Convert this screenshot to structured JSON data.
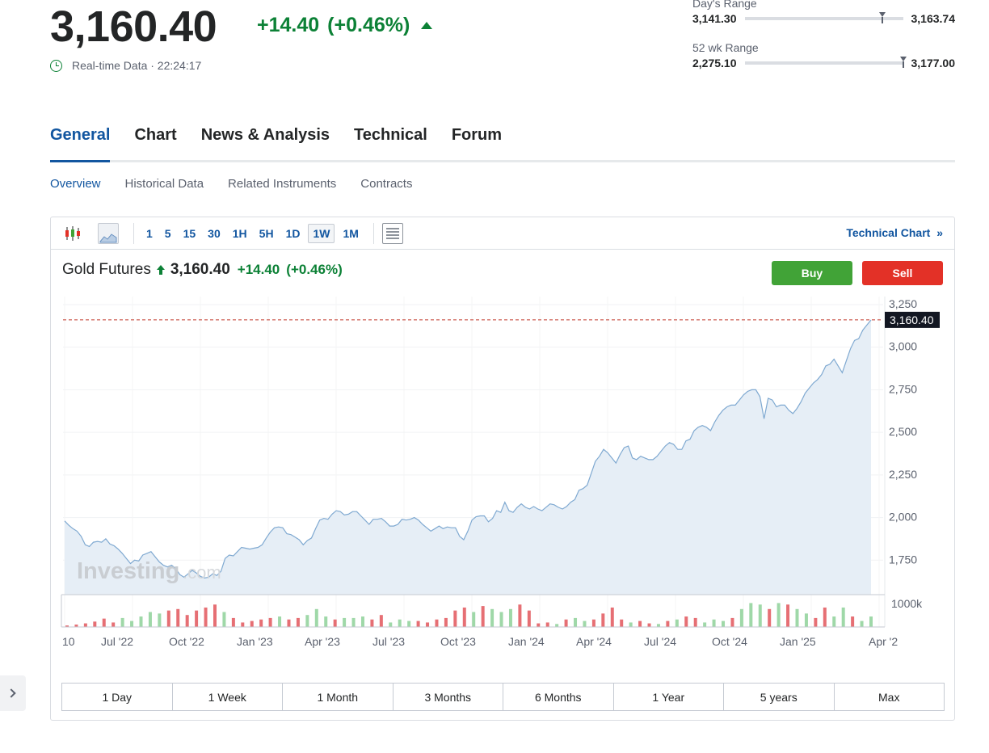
{
  "quote": {
    "price": "3,160.40",
    "change": "+14.40",
    "change_pct": "(+0.46%)",
    "realtime_label": "Real-time Data · 22:24:17"
  },
  "days_range": {
    "label": "Day's Range",
    "low": "3,141.30",
    "high": "3,163.74",
    "current_position": 0.85
  },
  "wk52_range": {
    "label": "52 wk Range",
    "low": "2,275.10",
    "high": "3,177.00",
    "current_position": 0.98
  },
  "tabs": [
    {
      "label": "General",
      "active": true
    },
    {
      "label": "Chart",
      "active": false
    },
    {
      "label": "News & Analysis",
      "active": false
    },
    {
      "label": "Technical",
      "active": false
    },
    {
      "label": "Forum",
      "active": false
    }
  ],
  "subtabs": [
    {
      "label": "Overview",
      "active": true
    },
    {
      "label": "Historical Data",
      "active": false
    },
    {
      "label": "Related Instruments",
      "active": false
    },
    {
      "label": "Contracts",
      "active": false
    }
  ],
  "toolbar": {
    "candle_icon": "candlestick-icon",
    "area_icon": "area-chart-icon",
    "intervals": [
      "1",
      "5",
      "15",
      "30",
      "1H",
      "5H",
      "1D",
      "1W",
      "1M"
    ],
    "active_interval": "1W",
    "layout_icon": "chart-layout-icon",
    "technical_link": "Technical Chart",
    "technical_link_icon": "double-chevron-right-icon"
  },
  "instrument": {
    "name": "Gold Futures",
    "arrow_icon": "up-arrow-icon",
    "price": "3,160.40",
    "change": "+14.40",
    "change_pct": "(+0.46%)"
  },
  "buttons": {
    "buy": "Buy",
    "sell": "Sell"
  },
  "watermark": {
    "text": "Investing",
    "suffix": ".com"
  },
  "chart_data": {
    "type": "area",
    "title": "Gold Futures",
    "x_ticks": [
      "10",
      "Jul '22",
      "Oct '22",
      "Jan '23",
      "Apr '23",
      "Jul '23",
      "Oct '23",
      "Jan '24",
      "Apr '24",
      "Jul '24",
      "Oct '24",
      "Jan '25",
      "Apr '2"
    ],
    "y_ticks": [
      "3,250",
      "3,000",
      "2,750",
      "2,500",
      "2,250",
      "2,000",
      "1,750"
    ],
    "ylim": [
      1500,
      3250
    ],
    "last_price_label": "3,160.40",
    "last_price": 3160.4,
    "volume_label": "1000k",
    "colors": {
      "line": "#7fa9d1",
      "fill": "#e6eef6",
      "price_line": "#c0392b",
      "vol_up": "#9fd8a8",
      "vol_down": "#e66f74"
    },
    "series": [
      {
        "values": [
          1980,
          1955,
          1935,
          1920,
          1890,
          1840,
          1830,
          1855,
          1860,
          1855,
          1875,
          1845,
          1835,
          1815,
          1790,
          1760,
          1730,
          1750,
          1745,
          1780,
          1790,
          1800,
          1770,
          1740,
          1720,
          1710,
          1720,
          1700,
          1665,
          1650,
          1670,
          1690,
          1675,
          1655,
          1645,
          1650,
          1670,
          1660,
          1685,
          1760,
          1780,
          1775,
          1800,
          1825,
          1820,
          1815,
          1820,
          1825,
          1840,
          1880,
          1915,
          1940,
          1945,
          1940,
          1905,
          1900,
          1885,
          1870,
          1840,
          1865,
          1880,
          1935,
          1985,
          1995,
          1990,
          2020,
          2040,
          2035,
          2015,
          2020,
          2035,
          2035,
          2010,
          1985,
          1960,
          1990,
          1990,
          1995,
          1975,
          1950,
          1950,
          1960,
          1990,
          1985,
          1990,
          2000,
          1985,
          1960,
          1940,
          1920,
          1935,
          1950,
          1935,
          1945,
          1940,
          1940,
          1890,
          1870,
          1920,
          1985,
          2005,
          2010,
          2010,
          1975,
          1995,
          2040,
          2030,
          2090,
          2040,
          2030,
          2060,
          2080,
          2060,
          2050,
          2065,
          2050,
          2040,
          2060,
          2080,
          2075,
          2060,
          2050,
          2065,
          2090,
          2105,
          2160,
          2170,
          2190,
          2260,
          2330,
          2360,
          2400,
          2380,
          2350,
          2320,
          2370,
          2410,
          2420,
          2350,
          2340,
          2360,
          2350,
          2340,
          2340,
          2360,
          2390,
          2420,
          2440,
          2430,
          2400,
          2400,
          2450,
          2460,
          2510,
          2530,
          2540,
          2530,
          2510,
          2560,
          2600,
          2630,
          2650,
          2660,
          2660,
          2690,
          2720,
          2740,
          2750,
          2750,
          2710,
          2580,
          2700,
          2690,
          2650,
          2660,
          2660,
          2630,
          2610,
          2640,
          2680,
          2730,
          2760,
          2790,
          2810,
          2840,
          2890,
          2900,
          2930,
          2890,
          2850,
          2920,
          2990,
          3040,
          3050,
          3100,
          3130,
          3160
        ]
      }
    ],
    "volume": [
      {
        "v": 0.05,
        "up": false
      },
      {
        "v": 0.08,
        "up": false
      },
      {
        "v": 0.12,
        "up": false
      },
      {
        "v": 0.18,
        "up": false
      },
      {
        "v": 0.28,
        "up": false
      },
      {
        "v": 0.15,
        "up": false
      },
      {
        "v": 0.3,
        "up": true
      },
      {
        "v": 0.2,
        "up": true
      },
      {
        "v": 0.35,
        "up": true
      },
      {
        "v": 0.5,
        "up": true
      },
      {
        "v": 0.45,
        "up": true
      },
      {
        "v": 0.55,
        "up": false
      },
      {
        "v": 0.6,
        "up": false
      },
      {
        "v": 0.4,
        "up": false
      },
      {
        "v": 0.55,
        "up": false
      },
      {
        "v": 0.65,
        "up": false
      },
      {
        "v": 0.75,
        "up": false
      },
      {
        "v": 0.5,
        "up": true
      },
      {
        "v": 0.3,
        "up": false
      },
      {
        "v": 0.15,
        "up": false
      },
      {
        "v": 0.2,
        "up": false
      },
      {
        "v": 0.25,
        "up": false
      },
      {
        "v": 0.3,
        "up": false
      },
      {
        "v": 0.35,
        "up": true
      },
      {
        "v": 0.25,
        "up": false
      },
      {
        "v": 0.3,
        "up": false
      },
      {
        "v": 0.4,
        "up": true
      },
      {
        "v": 0.6,
        "up": true
      },
      {
        "v": 0.35,
        "up": true
      },
      {
        "v": 0.25,
        "up": false
      },
      {
        "v": 0.3,
        "up": true
      },
      {
        "v": 0.3,
        "up": true
      },
      {
        "v": 0.35,
        "up": true
      },
      {
        "v": 0.25,
        "up": false
      },
      {
        "v": 0.4,
        "up": false
      },
      {
        "v": 0.15,
        "up": true
      },
      {
        "v": 0.25,
        "up": true
      },
      {
        "v": 0.2,
        "up": true
      },
      {
        "v": 0.2,
        "up": false
      },
      {
        "v": 0.15,
        "up": false
      },
      {
        "v": 0.25,
        "up": false
      },
      {
        "v": 0.3,
        "up": false
      },
      {
        "v": 0.55,
        "up": false
      },
      {
        "v": 0.65,
        "up": false
      },
      {
        "v": 0.5,
        "up": true
      },
      {
        "v": 0.7,
        "up": false
      },
      {
        "v": 0.6,
        "up": true
      },
      {
        "v": 0.5,
        "up": true
      },
      {
        "v": 0.6,
        "up": true
      },
      {
        "v": 0.75,
        "up": false
      },
      {
        "v": 0.55,
        "up": false
      },
      {
        "v": 0.12,
        "up": false
      },
      {
        "v": 0.15,
        "up": false
      },
      {
        "v": 0.1,
        "up": true
      },
      {
        "v": 0.25,
        "up": false
      },
      {
        "v": 0.3,
        "up": true
      },
      {
        "v": 0.2,
        "up": true
      },
      {
        "v": 0.25,
        "up": false
      },
      {
        "v": 0.45,
        "up": false
      },
      {
        "v": 0.65,
        "up": false
      },
      {
        "v": 0.25,
        "up": false
      },
      {
        "v": 0.15,
        "up": true
      },
      {
        "v": 0.2,
        "up": false
      },
      {
        "v": 0.12,
        "up": false
      },
      {
        "v": 0.1,
        "up": true
      },
      {
        "v": 0.2,
        "up": false
      },
      {
        "v": 0.25,
        "up": true
      },
      {
        "v": 0.35,
        "up": false
      },
      {
        "v": 0.3,
        "up": false
      },
      {
        "v": 0.15,
        "up": true
      },
      {
        "v": 0.25,
        "up": true
      },
      {
        "v": 0.2,
        "up": true
      },
      {
        "v": 0.3,
        "up": false
      },
      {
        "v": 0.6,
        "up": true
      },
      {
        "v": 0.8,
        "up": true
      },
      {
        "v": 0.75,
        "up": true
      },
      {
        "v": 0.6,
        "up": false
      },
      {
        "v": 0.8,
        "up": true
      },
      {
        "v": 0.75,
        "up": false
      },
      {
        "v": 0.6,
        "up": true
      },
      {
        "v": 0.45,
        "up": true
      },
      {
        "v": 0.3,
        "up": false
      },
      {
        "v": 0.65,
        "up": false
      },
      {
        "v": 0.35,
        "up": true
      },
      {
        "v": 0.65,
        "up": true
      },
      {
        "v": 0.35,
        "up": false
      },
      {
        "v": 0.2,
        "up": true
      },
      {
        "v": 0.35,
        "up": true
      }
    ]
  },
  "periods": [
    "1 Day",
    "1 Week",
    "1 Month",
    "3 Months",
    "6 Months",
    "1 Year",
    "5 years",
    "Max"
  ],
  "sidebar_toggle_icon": "chevron-right-icon"
}
